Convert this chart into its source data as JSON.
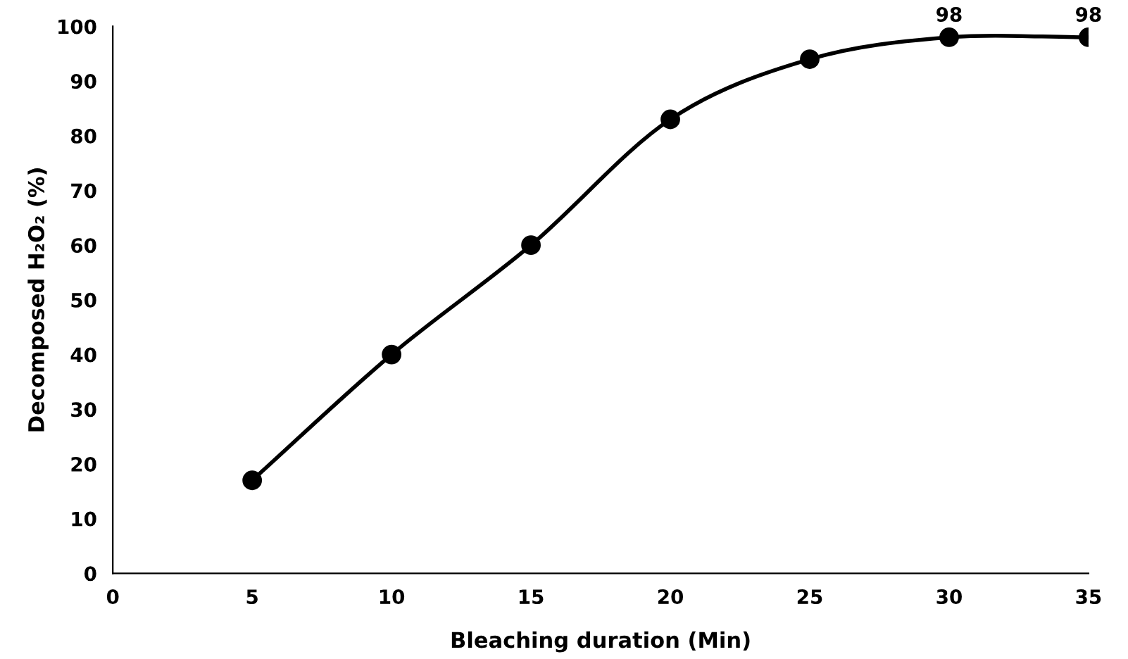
{
  "chart_data": {
    "type": "line",
    "xlabel": "Bleaching duration (Min)",
    "ylabel": "Decomposed H₂O₂ (%)",
    "x": [
      5,
      10,
      15,
      20,
      25,
      30,
      35
    ],
    "series": [
      {
        "color": "#000000",
        "values": [
          17,
          40,
          60,
          83,
          94,
          98,
          98
        ],
        "value_labels": [
          null,
          null,
          null,
          null,
          null,
          "98",
          "98"
        ]
      }
    ],
    "xlim": [
      0,
      35
    ],
    "xticks": [
      0,
      5,
      10,
      15,
      20,
      25,
      30,
      35
    ],
    "ylim": [
      0,
      100
    ],
    "yticks": [
      0,
      10,
      20,
      30,
      40,
      50,
      60,
      70,
      80,
      90,
      100
    ],
    "grid": false,
    "legend": false,
    "marker": "circle",
    "line_style": "solid"
  }
}
